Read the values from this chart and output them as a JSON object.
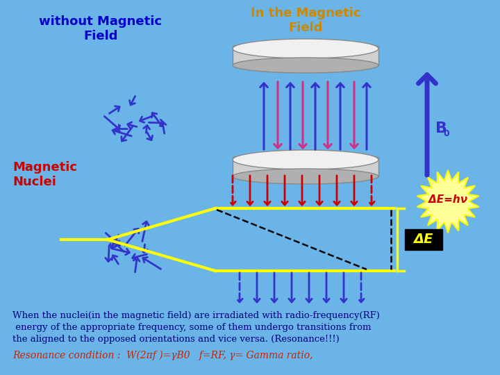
{
  "background_color": "#6ab4e8",
  "title_left": "without Magnetic\nField",
  "title_right": "In the Magnetic\nField",
  "title_left_color": "#0000cc",
  "title_right_color": "#cc8800",
  "label_magnetic_nuclei": "Magnetic\nNuclei",
  "label_magnetic_nuclei_color": "#cc0000",
  "body_text_color": "#000080",
  "resonance_text_color": "#cc2200",
  "body_text": "When the nuclei(in the magnetic field) are irradiated with radio-frequency(RF)\n energy of the appropriate frequency, some of them undergo transitions from\nthe aligned to the opposed orientations and vice versa. (Resonance!!!)",
  "resonance_formula": "Resonance condition :  W(2πf )=γB0   f=RF, γ= Gamma ratio,",
  "delta_e_text": "ΔE=hν",
  "delta_e_box_text": "ΔE",
  "B0_text": "B",
  "arrow_blue": "#3333cc",
  "arrow_red": "#cc0000",
  "arrow_pink": "#cc3388",
  "yellow_line": "#ffff00",
  "burst_fill": "#ffff99",
  "burst_edge": "#ffff00",
  "black": "#000000",
  "white": "#ffffff"
}
